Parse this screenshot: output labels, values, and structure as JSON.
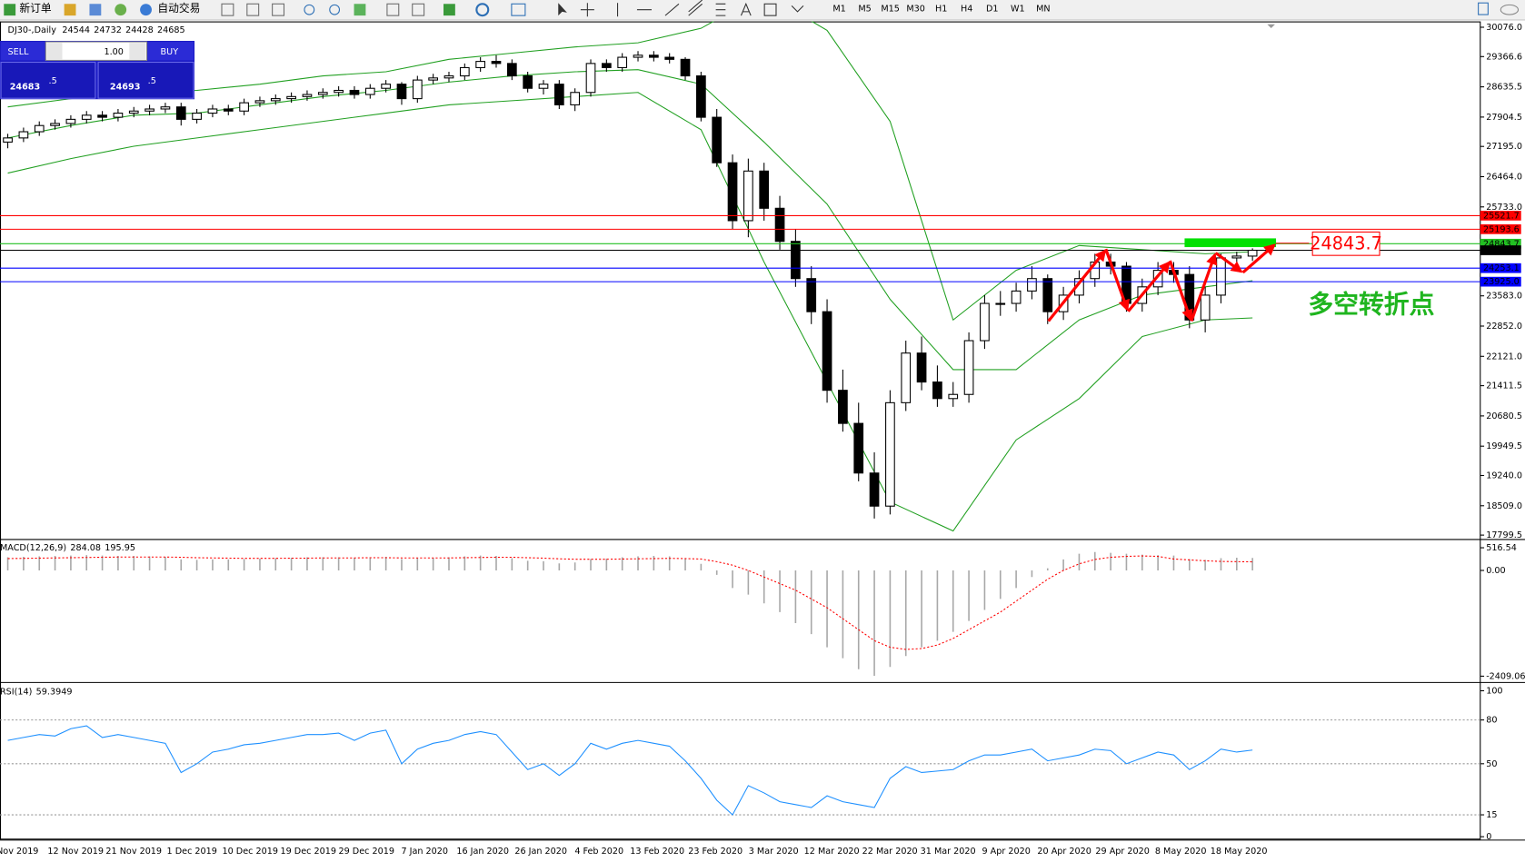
{
  "toolbar": {
    "new_order": "新订单",
    "auto_trading": "自动交易",
    "timeframes": [
      "M1",
      "M5",
      "M15",
      "M30",
      "H1",
      "H4",
      "D1",
      "W1",
      "MN"
    ]
  },
  "trade_panel": {
    "sell": "SELL",
    "lots": "1.00",
    "buy": "BUY",
    "bid": "24683",
    "bid_fraction": ".5",
    "ask": "24693",
    "ask_fraction": ".5"
  },
  "chart_data": [
    {
      "type": "candlestick",
      "title": "DJ30-,Daily",
      "open": [
        27300,
        27400,
        27550,
        27700,
        27750,
        27850,
        27950,
        27900,
        28000,
        28050,
        28100,
        28150,
        27850,
        28000,
        28100,
        28050,
        28250,
        28300,
        28350,
        28400,
        28450,
        28500,
        28550,
        28450,
        28600,
        28700,
        28350,
        28800,
        28850,
        28900,
        29100,
        29250,
        29200,
        28900,
        28600,
        28700,
        28200,
        28500,
        29200,
        29100,
        29350,
        29400,
        29350,
        29300,
        28900,
        27900,
        26800,
        25400,
        26600,
        25700,
        24900,
        24000,
        23200,
        21300,
        20500,
        19300,
        18500,
        21000,
        22200,
        21500,
        21100,
        21200,
        22500,
        23400,
        23400,
        23700,
        24000,
        23200,
        23600,
        24000,
        24400,
        24300,
        23400,
        23800,
        24200,
        24100,
        23000,
        23600,
        24500,
        24544
      ],
      "high": [
        27500,
        27650,
        27800,
        27850,
        27950,
        28050,
        28050,
        28100,
        28150,
        28200,
        28250,
        28250,
        28100,
        28200,
        28200,
        28350,
        28400,
        28450,
        28500,
        28550,
        28600,
        28650,
        28650,
        28700,
        28800,
        28750,
        28900,
        28950,
        29000,
        29200,
        29350,
        29400,
        29300,
        29000,
        28800,
        28800,
        28600,
        29300,
        29300,
        29450,
        29500,
        29500,
        29450,
        29350,
        29000,
        28100,
        27000,
        26900,
        26800,
        26000,
        25200,
        24300,
        23500,
        21800,
        21000,
        19800,
        21300,
        22500,
        22600,
        21900,
        21500,
        22700,
        23600,
        23700,
        23900,
        24300,
        24100,
        23800,
        24200,
        24600,
        24600,
        24400,
        24000,
        24400,
        24400,
        24300,
        23800,
        24600,
        24650,
        24732
      ],
      "low": [
        27150,
        27300,
        27450,
        27600,
        27650,
        27750,
        27800,
        27800,
        27900,
        27950,
        28000,
        27700,
        27750,
        27900,
        27950,
        27950,
        28150,
        28200,
        28250,
        28300,
        28350,
        28400,
        28350,
        28350,
        28500,
        28200,
        28250,
        28700,
        28750,
        28800,
        29000,
        29100,
        28800,
        28500,
        28450,
        28100,
        28050,
        28400,
        29000,
        29000,
        29250,
        29250,
        29200,
        28800,
        27800,
        26700,
        25200,
        25000,
        25400,
        24700,
        23800,
        22900,
        21000,
        20300,
        19100,
        18200,
        18300,
        20800,
        21300,
        20900,
        20900,
        21000,
        22300,
        23100,
        23200,
        23500,
        22900,
        23000,
        23400,
        23800,
        24100,
        23200,
        23200,
        23600,
        23900,
        22800,
        22700,
        23400,
        24300,
        24428
      ],
      "close": [
        27400,
        27550,
        27700,
        27750,
        27850,
        27950,
        27900,
        28000,
        28050,
        28100,
        28150,
        27850,
        28000,
        28100,
        28050,
        28250,
        28300,
        28350,
        28400,
        28450,
        28500,
        28550,
        28450,
        28600,
        28700,
        28350,
        28800,
        28850,
        28900,
        29100,
        29250,
        29200,
        28900,
        28600,
        28700,
        28200,
        28500,
        29200,
        29100,
        29350,
        29400,
        29350,
        29300,
        28900,
        27900,
        26800,
        25400,
        26600,
        25700,
        24900,
        24000,
        23200,
        21300,
        20500,
        19300,
        18500,
        21000,
        22200,
        21500,
        21100,
        21200,
        22500,
        23400,
        23400,
        23700,
        24000,
        23200,
        23600,
        24000,
        24400,
        24300,
        23400,
        23800,
        24200,
        24100,
        23000,
        23600,
        24500,
        24544,
        24685
      ],
      "up_color": "#ffffff",
      "down_color": "#000000",
      "bands": {
        "color": "#22a022",
        "x": [
          0,
          4,
          8,
          12,
          16,
          20,
          24,
          28,
          32,
          36,
          40,
          44,
          48,
          52,
          56,
          60,
          64,
          68,
          72,
          76,
          79
        ],
        "upper": [
          28150,
          28350,
          28450,
          28550,
          28700,
          28900,
          29000,
          29300,
          29450,
          29600,
          29700,
          30050,
          30900,
          30000,
          27800,
          23000,
          24200,
          24800,
          24700,
          24600,
          24650
        ],
        "middle": [
          27400,
          27700,
          27950,
          28000,
          28200,
          28400,
          28550,
          28750,
          28900,
          29000,
          29050,
          28700,
          27300,
          25800,
          23500,
          21800,
          21800,
          23000,
          23600,
          23800,
          23950
        ],
        "lower": [
          26550,
          26900,
          27200,
          27400,
          27600,
          27800,
          28000,
          28200,
          28300,
          28400,
          28500,
          27600,
          24400,
          21500,
          18600,
          17900,
          20100,
          21100,
          22600,
          23000,
          23050
        ]
      },
      "levels": [
        {
          "value": 25521.7,
          "color": "#ff0000",
          "text_color": "#ffffff"
        },
        {
          "value": 25193.6,
          "color": "#ff0000",
          "text_color": "#ffffff"
        },
        {
          "value": 24843.7,
          "color": "#22c022",
          "text_color": "#000000"
        },
        {
          "value": 24685,
          "label": "24685.0",
          "color": "#000000",
          "text_color": "#ffffff"
        },
        {
          "value": 24253.1,
          "color": "#0000ff",
          "text_color": "#ffffff"
        },
        {
          "value": 23925,
          "label": "23925.0",
          "color": "#0000ff",
          "text_color": "#ffffff"
        }
      ],
      "ylim": [
        17799.5,
        30076
      ],
      "yticks": [
        {
          "value": 30076,
          "label": "30076.0"
        },
        29366.6,
        28635.5,
        27904.5,
        {
          "value": 27195,
          "label": "27195.0"
        },
        {
          "value": 26464,
          "label": "26464.0"
        },
        {
          "value": 25733,
          "label": "25733.0"
        },
        {
          "value": 23583,
          "label": "23583.0"
        },
        {
          "value": 22852,
          "label": "22852.0"
        },
        {
          "value": 22121,
          "label": "22121.0"
        },
        21411.5,
        20680.5,
        19949.5,
        {
          "value": 19240,
          "label": "19240.0"
        },
        {
          "value": 18509,
          "label": "18509.0"
        },
        17799.5
      ],
      "xticks": [
        "Nov 2019",
        "12 Nov 2019",
        "21 Nov 2019",
        "1 Dec 2019",
        "10 Dec 2019",
        "19 Dec 2019",
        "29 Dec 2019",
        "7 Jan 2020",
        "16 Jan 2020",
        "26 Jan 2020",
        "4 Feb 2020",
        "13 Feb 2020",
        "23 Feb 2020",
        "3 Mar 2020",
        "12 Mar 2020",
        "22 Mar 2020",
        "31 Mar 2020",
        "9 Apr 2020",
        "20 Apr 2020",
        "29 Apr 2020",
        "8 May 2020",
        "18 May 2020"
      ],
      "annotation": "多空转折点"
    },
    {
      "type": "macd",
      "title": "MACD(12,26,9)",
      "histogram": [
        300,
        310,
        320,
        330,
        340,
        350,
        340,
        330,
        330,
        320,
        310,
        250,
        240,
        250,
        250,
        260,
        270,
        280,
        290,
        300,
        300,
        300,
        290,
        300,
        310,
        260,
        280,
        290,
        300,
        320,
        340,
        330,
        280,
        220,
        210,
        160,
        180,
        260,
        270,
        300,
        320,
        330,
        320,
        260,
        150,
        -100,
        -400,
        -550,
        -750,
        -950,
        -1200,
        -1450,
        -1750,
        -2000,
        -2250,
        -2400,
        -2200,
        -1950,
        -1750,
        -1600,
        -1400,
        -1150,
        -900,
        -650,
        -400,
        -150,
        50,
        250,
        380,
        420,
        400,
        380,
        360,
        350,
        340,
        260,
        240,
        280,
        290,
        284.08
      ],
      "signal": [
        270,
        275,
        280,
        285,
        290,
        295,
        300,
        305,
        305,
        305,
        305,
        300,
        290,
        285,
        280,
        275,
        275,
        275,
        280,
        280,
        285,
        285,
        285,
        290,
        290,
        285,
        285,
        285,
        285,
        290,
        295,
        300,
        300,
        290,
        280,
        265,
        255,
        255,
        255,
        260,
        265,
        270,
        275,
        270,
        260,
        200,
        120,
        0,
        -150,
        -300,
        -450,
        -650,
        -850,
        -1100,
        -1350,
        -1600,
        -1750,
        -1800,
        -1780,
        -1700,
        -1550,
        -1350,
        -1150,
        -950,
        -700,
        -450,
        -200,
        0,
        150,
        250,
        300,
        320,
        330,
        320,
        260,
        240,
        220,
        205,
        200,
        195.95
      ],
      "hist_color": "#a8a8a8",
      "signal_color": "#ff0000",
      "ylim": [
        -2520,
        672
      ],
      "yticks": [
        516.54,
        {
          "value": 0,
          "label": "0.00"
        },
        -2409.06
      ]
    },
    {
      "type": "line",
      "title": "RSI(14)",
      "values": [
        66,
        68,
        70,
        69,
        74,
        76,
        68,
        70,
        68,
        66,
        64,
        44,
        50,
        58,
        60,
        63,
        64,
        66,
        68,
        70,
        70,
        71,
        66,
        71,
        73,
        50,
        60,
        64,
        66,
        70,
        72,
        70,
        58,
        46,
        50,
        42,
        50,
        64,
        60,
        64,
        66,
        64,
        62,
        52,
        40,
        25,
        15,
        35,
        30,
        24,
        22,
        20,
        28,
        24,
        22,
        20,
        40,
        48,
        44,
        45,
        46,
        52,
        56,
        56,
        58,
        60,
        52,
        54,
        56,
        60,
        59,
        50,
        54,
        58,
        56,
        46,
        52,
        60,
        58,
        59.3949
      ],
      "color": "#1e90ff",
      "grid": "dotted",
      "ylim": [
        0,
        100
      ],
      "yticks": [
        100,
        80,
        50,
        15,
        0
      ]
    }
  ]
}
